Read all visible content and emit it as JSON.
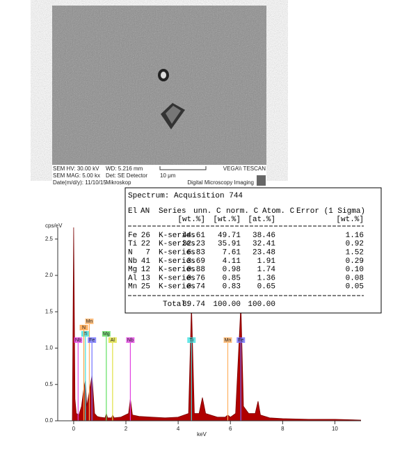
{
  "sem": {
    "hv": "SEM HV: 30.00 kV",
    "wd": "WD: 5.216 mm",
    "brand": "VEGA\\\\ TESCAN",
    "mag": "SEM MAG: 5.00 kx",
    "det": "Det: SE Detector",
    "scale": "10 μm",
    "date": "Date(m/d/y): 11/10/15",
    "operator": "Mikroskop",
    "footer": "Digital Microscopy Imaging"
  },
  "table": {
    "title": "Spectrum: Acquisition 744",
    "header": [
      "El",
      "AN",
      "Series",
      "unn. C",
      "norm. C",
      "Atom. C",
      "Error (1 Sigma)"
    ],
    "units": [
      "[wt.%]",
      "[wt.%]",
      "[at.%]",
      "[wt.%]"
    ],
    "rows": [
      [
        "Fe",
        "26",
        "K-series",
        "44.61",
        "49.71",
        "38.46",
        "1.16"
      ],
      [
        "Ti",
        "22",
        "K-series",
        "32.23",
        "35.91",
        "32.41",
        "0.92"
      ],
      [
        "N",
        "7",
        "K-series",
        "6.83",
        "7.61",
        "23.48",
        "1.52"
      ],
      [
        "Nb",
        "41",
        "K-series",
        "3.69",
        "4.11",
        "1.91",
        "0.29"
      ],
      [
        "Mg",
        "12",
        "K-series",
        "0.88",
        "0.98",
        "1.74",
        "0.10"
      ],
      [
        "Al",
        "13",
        "K-series",
        "0.76",
        "0.85",
        "1.36",
        "0.08"
      ],
      [
        "Mn",
        "25",
        "K-series",
        "0.74",
        "0.83",
        "0.65",
        "0.05"
      ]
    ],
    "total": [
      "Total:",
      "89.74",
      "100.00",
      "100.00"
    ]
  },
  "chart_data": {
    "type": "area",
    "y_label": "cps/eV",
    "x_label": "keV",
    "color": "#b00000",
    "x": [
      -0.05,
      0,
      0.05,
      0.1,
      0.2,
      0.3,
      0.39,
      0.45,
      0.5,
      0.6,
      0.7,
      0.8,
      0.9,
      1.0,
      1.2,
      1.25,
      1.3,
      1.45,
      1.49,
      1.55,
      1.8,
      2.1,
      2.17,
      2.25,
      2.5,
      3,
      3.5,
      4.0,
      4.4,
      4.51,
      4.62,
      4.8,
      4.93,
      5.05,
      5.5,
      5.8,
      5.9,
      6.0,
      6.2,
      6.4,
      6.5,
      6.7,
      6.95,
      7.06,
      7.15,
      7.5,
      8,
      9,
      10,
      11
    ],
    "values": [
      0,
      2.66,
      0.3,
      0.1,
      0.08,
      0.2,
      0.45,
      0.55,
      0.2,
      0.4,
      0.62,
      0.1,
      0.06,
      0.05,
      0.04,
      0.1,
      0.04,
      0.04,
      0.08,
      0.04,
      0.05,
      0.1,
      0.3,
      0.08,
      0.06,
      0.05,
      0.04,
      0.05,
      0.1,
      1.6,
      0.1,
      0.1,
      0.32,
      0.1,
      0.05,
      0.05,
      0.08,
      0.05,
      0.1,
      1.6,
      0.2,
      0.1,
      0.1,
      0.27,
      0.08,
      0.04,
      0.03,
      0.02,
      0.02,
      0.01
    ],
    "xlim": [
      -0.61,
      11
    ],
    "ylim": [
      0,
      2.66
    ],
    "xticks": [
      0,
      2,
      4,
      6,
      8,
      10
    ],
    "yticks": [
      {
        "value": 0,
        "label": "0.0"
      },
      {
        "value": 0.5,
        "label": "0.5"
      },
      {
        "value": 1,
        "label": "1.0"
      },
      {
        "value": 1.5,
        "label": "1.5"
      },
      {
        "value": 2,
        "label": "2.0"
      },
      {
        "value": 2.5,
        "label": "2.5"
      }
    ],
    "markers": [
      {
        "label": "Nb",
        "energy": 0.17,
        "color": "#e040e0"
      },
      {
        "label": "Ti",
        "energy": 0.45,
        "color": "#40e0e0"
      },
      {
        "label": "N",
        "energy": 0.39,
        "color": "#ffa040"
      },
      {
        "label": "Mn",
        "energy": 0.6,
        "color": "#ffb060"
      },
      {
        "label": "Fe",
        "energy": 0.7,
        "color": "#7070ff"
      },
      {
        "label": "Mg",
        "energy": 1.25,
        "color": "#60e060"
      },
      {
        "label": "Al",
        "energy": 1.49,
        "color": "#e0e040"
      },
      {
        "label": "Nb",
        "energy": 2.17,
        "color": "#e040e0"
      },
      {
        "label": "Ti",
        "energy": 4.51,
        "color": "#40e0e0"
      },
      {
        "label": "Mn",
        "energy": 5.9,
        "color": "#ffb060"
      },
      {
        "label": "Fe",
        "energy": 6.4,
        "color": "#7070ff"
      }
    ]
  }
}
